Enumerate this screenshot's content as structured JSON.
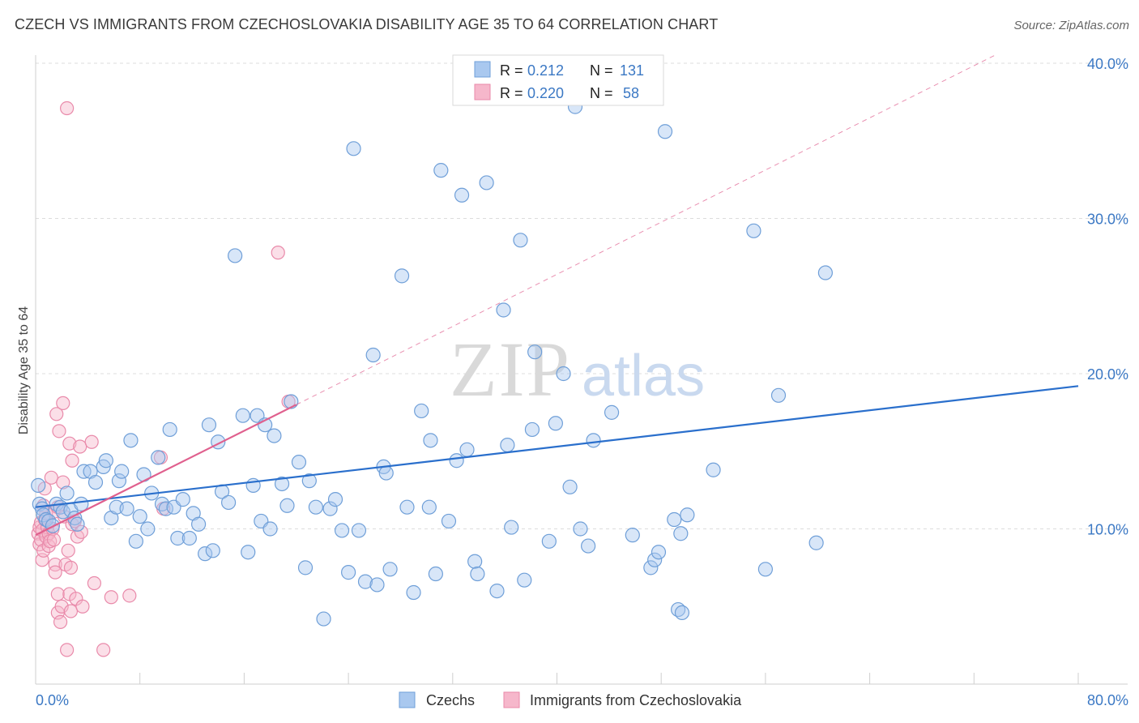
{
  "header": {
    "title": "CZECH VS IMMIGRANTS FROM CZECHOSLOVAKIA DISABILITY AGE 35 TO 64 CORRELATION CHART",
    "source": "Source: ZipAtlas.com"
  },
  "watermark": {
    "zip": "ZIP",
    "atlas": "atlas"
  },
  "colors": {
    "blue_fill": "#a9c8ef",
    "blue_stroke": "#6f9fd8",
    "blue_line": "#2a6fcc",
    "pink_fill": "#f6b7cb",
    "pink_stroke": "#e98aaa",
    "pink_line": "#e0608e",
    "tick_label": "#3b78c4",
    "grid": "#dddddd"
  },
  "chart_data": {
    "type": "scatter",
    "title": "CZECH VS IMMIGRANTS FROM CZECHOSLOVAKIA DISABILITY AGE 35 TO 64 CORRELATION CHART",
    "xlabel": "",
    "ylabel": "Disability Age 35 to 64",
    "xlim": [
      0,
      80
    ],
    "ylim": [
      0,
      40
    ],
    "x_tick_labels": [
      "0.0%",
      "80.0%"
    ],
    "y_ticks": [
      10,
      20,
      30,
      40
    ],
    "y_tick_labels": [
      "10.0%",
      "20.0%",
      "30.0%",
      "40.0%"
    ],
    "grid": true,
    "legend_position": "top-center",
    "stats": [
      {
        "r_label": "R =",
        "r_value": "0.212",
        "n_label": "N =",
        "n_value": "131"
      },
      {
        "r_label": "R =",
        "r_value": "0.220",
        "n_label": "N =",
        "n_value": "58"
      }
    ],
    "series": [
      {
        "name": "Czechs",
        "color": "#a9c8ef",
        "trend": {
          "x": [
            0,
            80
          ],
          "y": [
            11.4,
            19.2
          ]
        },
        "points": [
          [
            0.2,
            12.8
          ],
          [
            0.3,
            11.6
          ],
          [
            0.5,
            11.3
          ],
          [
            0.6,
            10.9
          ],
          [
            0.8,
            10.6
          ],
          [
            1.0,
            10.5
          ],
          [
            1.3,
            10.2
          ],
          [
            1.6,
            11.6
          ],
          [
            1.9,
            11.4
          ],
          [
            2.1,
            11.1
          ],
          [
            2.4,
            12.3
          ],
          [
            2.7,
            11.2
          ],
          [
            3.0,
            10.7
          ],
          [
            3.2,
            10.3
          ],
          [
            3.5,
            11.6
          ],
          [
            3.7,
            13.7
          ],
          [
            4.2,
            13.7
          ],
          [
            4.6,
            13.0
          ],
          [
            5.2,
            14.0
          ],
          [
            5.4,
            14.4
          ],
          [
            5.8,
            10.7
          ],
          [
            6.2,
            11.4
          ],
          [
            6.4,
            13.1
          ],
          [
            6.6,
            13.7
          ],
          [
            7.0,
            11.3
          ],
          [
            7.3,
            15.7
          ],
          [
            7.7,
            9.2
          ],
          [
            8.0,
            10.8
          ],
          [
            8.3,
            13.5
          ],
          [
            8.6,
            10.0
          ],
          [
            8.9,
            12.3
          ],
          [
            9.4,
            14.6
          ],
          [
            9.7,
            11.6
          ],
          [
            10.0,
            11.3
          ],
          [
            10.3,
            16.4
          ],
          [
            10.6,
            11.4
          ],
          [
            10.9,
            9.4
          ],
          [
            11.3,
            11.9
          ],
          [
            11.8,
            9.4
          ],
          [
            12.1,
            11.0
          ],
          [
            12.5,
            10.3
          ],
          [
            13.0,
            8.4
          ],
          [
            13.3,
            16.7
          ],
          [
            13.6,
            8.6
          ],
          [
            14.0,
            15.6
          ],
          [
            14.3,
            12.4
          ],
          [
            14.8,
            11.7
          ],
          [
            15.3,
            27.6
          ],
          [
            15.9,
            17.3
          ],
          [
            16.3,
            8.5
          ],
          [
            16.7,
            12.8
          ],
          [
            17.0,
            17.3
          ],
          [
            17.3,
            10.5
          ],
          [
            17.6,
            16.7
          ],
          [
            18.0,
            10.0
          ],
          [
            18.3,
            16.0
          ],
          [
            18.9,
            12.9
          ],
          [
            19.3,
            11.5
          ],
          [
            19.6,
            18.2
          ],
          [
            20.2,
            14.3
          ],
          [
            20.7,
            7.5
          ],
          [
            21.0,
            13.1
          ],
          [
            21.5,
            11.4
          ],
          [
            22.1,
            4.2
          ],
          [
            22.6,
            11.3
          ],
          [
            23.0,
            11.9
          ],
          [
            23.5,
            9.9
          ],
          [
            24.0,
            7.2
          ],
          [
            24.4,
            34.5
          ],
          [
            24.8,
            9.9
          ],
          [
            25.3,
            6.6
          ],
          [
            25.9,
            21.2
          ],
          [
            26.2,
            6.4
          ],
          [
            26.7,
            14.0
          ],
          [
            26.9,
            13.6
          ],
          [
            27.2,
            7.4
          ],
          [
            28.1,
            26.3
          ],
          [
            28.5,
            11.4
          ],
          [
            29.0,
            5.9
          ],
          [
            29.6,
            17.6
          ],
          [
            30.2,
            11.4
          ],
          [
            30.3,
            15.7
          ],
          [
            30.7,
            7.1
          ],
          [
            31.1,
            33.1
          ],
          [
            31.7,
            10.5
          ],
          [
            32.3,
            14.4
          ],
          [
            32.7,
            31.5
          ],
          [
            33.1,
            15.1
          ],
          [
            33.7,
            7.9
          ],
          [
            33.9,
            7.1
          ],
          [
            34.6,
            32.3
          ],
          [
            35.4,
            6.0
          ],
          [
            35.9,
            24.1
          ],
          [
            36.2,
            15.4
          ],
          [
            36.5,
            10.1
          ],
          [
            37.2,
            28.6
          ],
          [
            37.5,
            6.7
          ],
          [
            38.1,
            16.4
          ],
          [
            38.3,
            21.4
          ],
          [
            39.4,
            9.2
          ],
          [
            39.9,
            16.8
          ],
          [
            40.5,
            20.0
          ],
          [
            41.0,
            12.7
          ],
          [
            41.4,
            37.2
          ],
          [
            41.8,
            10.0
          ],
          [
            42.4,
            8.9
          ],
          [
            42.8,
            15.7
          ],
          [
            43.2,
            38.0
          ],
          [
            44.2,
            17.5
          ],
          [
            44.9,
            38.3
          ],
          [
            45.8,
            9.6
          ],
          [
            47.2,
            7.5
          ],
          [
            47.5,
            8.0
          ],
          [
            47.8,
            8.5
          ],
          [
            48.3,
            35.6
          ],
          [
            49.0,
            10.6
          ],
          [
            49.3,
            4.8
          ],
          [
            49.5,
            9.7
          ],
          [
            49.6,
            4.6
          ],
          [
            50.0,
            10.9
          ],
          [
            52.0,
            13.8
          ],
          [
            55.1,
            29.2
          ],
          [
            56.0,
            7.4
          ],
          [
            57.0,
            18.6
          ],
          [
            59.9,
            9.1
          ],
          [
            60.6,
            26.5
          ]
        ]
      },
      {
        "name": "Immigrants from Czechoslovakia",
        "color": "#f6b7cb",
        "trend": {
          "x": [
            0,
            20
          ],
          "y": [
            9.6,
            18.0
          ]
        },
        "points": [
          [
            0.2,
            9.7
          ],
          [
            0.3,
            10.1
          ],
          [
            0.3,
            9.0
          ],
          [
            0.4,
            10.4
          ],
          [
            0.4,
            9.3
          ],
          [
            0.5,
            9.9
          ],
          [
            0.5,
            8.0
          ],
          [
            0.6,
            11.5
          ],
          [
            0.6,
            8.6
          ],
          [
            0.7,
            12.6
          ],
          [
            0.7,
            10.6
          ],
          [
            0.8,
            11.0
          ],
          [
            0.8,
            9.5
          ],
          [
            0.9,
            10.1
          ],
          [
            1.0,
            9.7
          ],
          [
            1.0,
            8.9
          ],
          [
            1.1,
            9.2
          ],
          [
            1.2,
            13.3
          ],
          [
            1.3,
            10.0
          ],
          [
            1.4,
            11.1
          ],
          [
            1.4,
            9.3
          ],
          [
            1.5,
            7.7
          ],
          [
            1.5,
            7.2
          ],
          [
            1.6,
            17.4
          ],
          [
            1.7,
            11.4
          ],
          [
            1.7,
            5.8
          ],
          [
            1.7,
            4.6
          ],
          [
            1.8,
            16.3
          ],
          [
            1.9,
            4.0
          ],
          [
            2.0,
            5.0
          ],
          [
            2.1,
            18.1
          ],
          [
            2.1,
            13.0
          ],
          [
            2.2,
            10.8
          ],
          [
            2.3,
            7.7
          ],
          [
            2.4,
            37.1
          ],
          [
            2.4,
            2.2
          ],
          [
            2.5,
            8.6
          ],
          [
            2.6,
            15.5
          ],
          [
            2.6,
            5.8
          ],
          [
            2.7,
            4.7
          ],
          [
            2.7,
            7.5
          ],
          [
            2.8,
            14.4
          ],
          [
            2.8,
            10.3
          ],
          [
            3.0,
            10.5
          ],
          [
            3.1,
            5.5
          ],
          [
            3.2,
            9.5
          ],
          [
            3.4,
            15.3
          ],
          [
            3.5,
            9.8
          ],
          [
            3.6,
            5.0
          ],
          [
            4.3,
            15.6
          ],
          [
            4.5,
            6.5
          ],
          [
            5.2,
            2.2
          ],
          [
            5.8,
            5.6
          ],
          [
            7.2,
            5.7
          ],
          [
            9.6,
            14.6
          ],
          [
            9.8,
            11.3
          ],
          [
            18.6,
            27.8
          ],
          [
            19.4,
            18.2
          ]
        ]
      }
    ]
  }
}
